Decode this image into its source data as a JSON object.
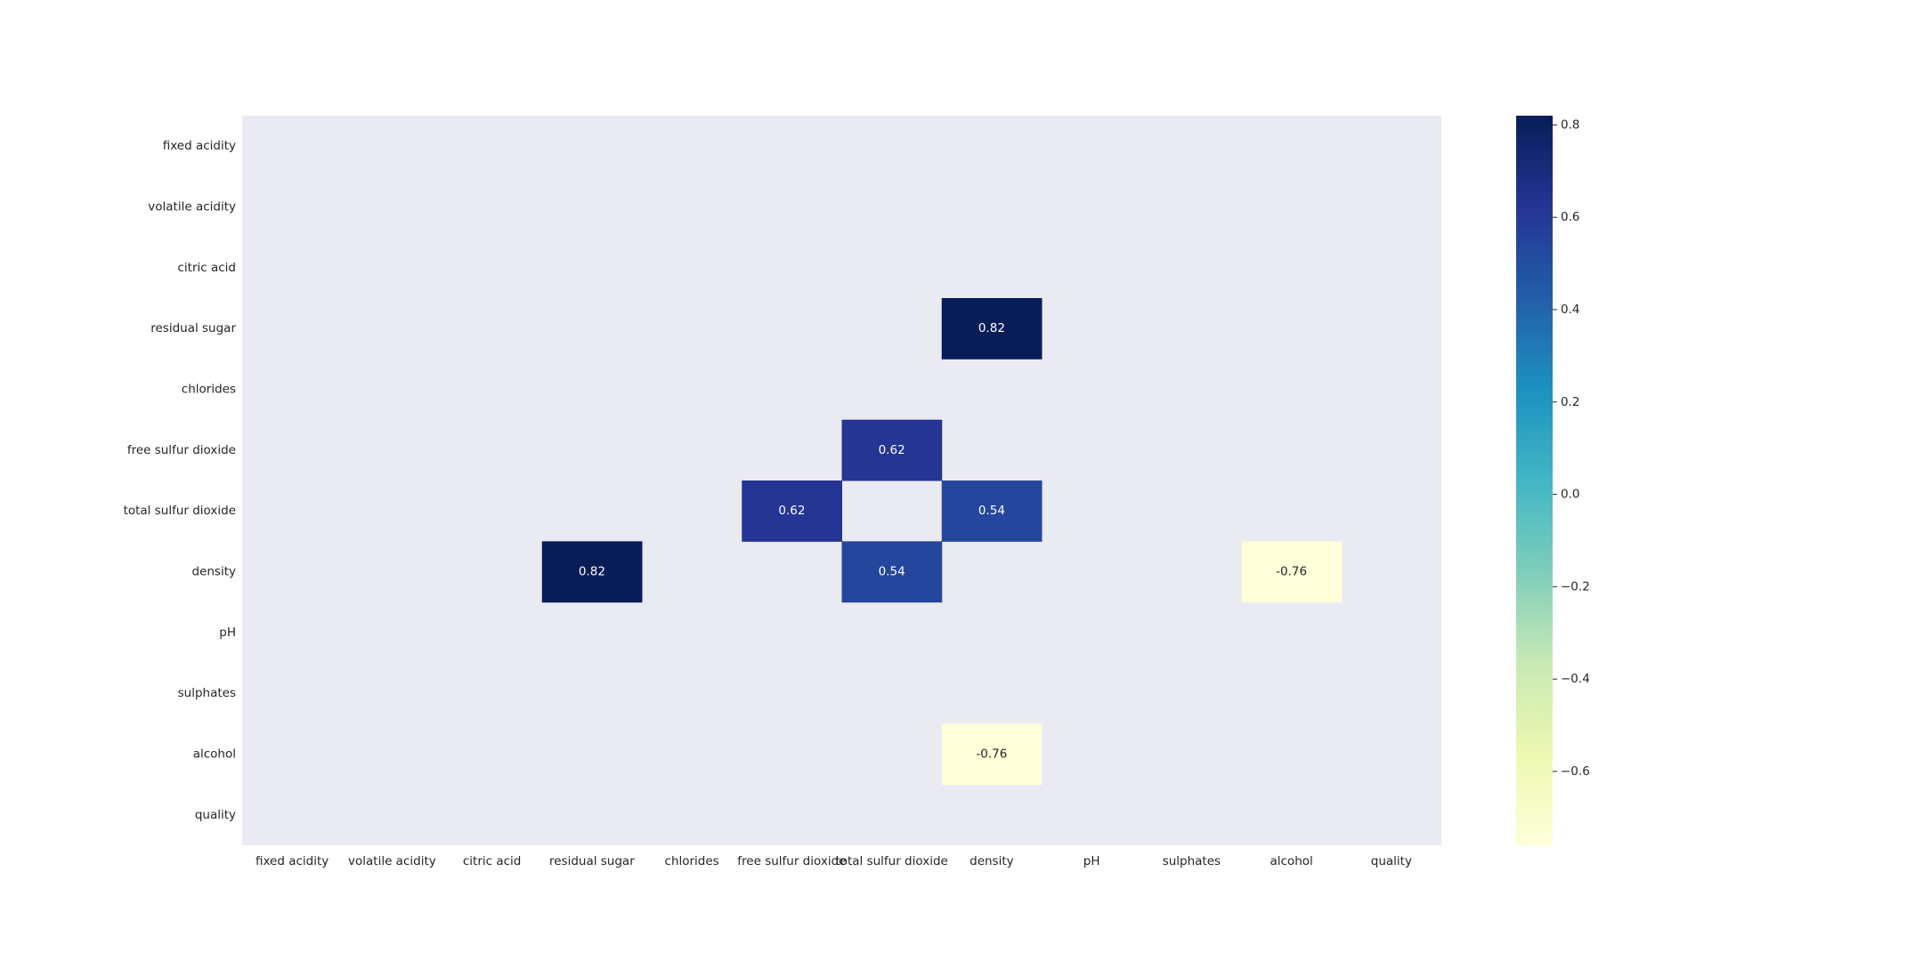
{
  "chart_data": {
    "type": "heatmap",
    "title": "",
    "xlabel": "",
    "ylabel": "",
    "variables": [
      "fixed acidity",
      "volatile acidity",
      "citric acid",
      "residual sugar",
      "chlorides",
      "free sulfur dioxide",
      "total sulfur dioxide",
      "density",
      "pH",
      "sulphates",
      "alcohol",
      "quality"
    ],
    "cells": [
      {
        "row": "residual sugar",
        "col": "density",
        "value": 0.82,
        "label": "0.82"
      },
      {
        "row": "free sulfur dioxide",
        "col": "total sulfur dioxide",
        "value": 0.62,
        "label": "0.62"
      },
      {
        "row": "total sulfur dioxide",
        "col": "free sulfur dioxide",
        "value": 0.62,
        "label": "0.62"
      },
      {
        "row": "total sulfur dioxide",
        "col": "density",
        "value": 0.54,
        "label": "0.54"
      },
      {
        "row": "density",
        "col": "residual sugar",
        "value": 0.82,
        "label": "0.82"
      },
      {
        "row": "density",
        "col": "total sulfur dioxide",
        "value": 0.54,
        "label": "0.54"
      },
      {
        "row": "density",
        "col": "alcohol",
        "value": -0.76,
        "label": "-0.76"
      },
      {
        "row": "alcohol",
        "col": "density",
        "value": -0.76,
        "label": "-0.76"
      }
    ],
    "colorbar": {
      "colormap": "YlGnBu",
      "vmin": -0.76,
      "vmax": 0.82,
      "ticks": [
        0.8,
        0.6,
        0.4,
        0.2,
        0.0,
        -0.2,
        -0.4,
        -0.6
      ],
      "tick_labels": [
        "0.8",
        "0.6",
        "0.4",
        "0.2",
        "0.0",
        "−0.2",
        "−0.4",
        "−0.6"
      ]
    },
    "masked_cell_color": "#eaeaf2",
    "grid": false
  }
}
